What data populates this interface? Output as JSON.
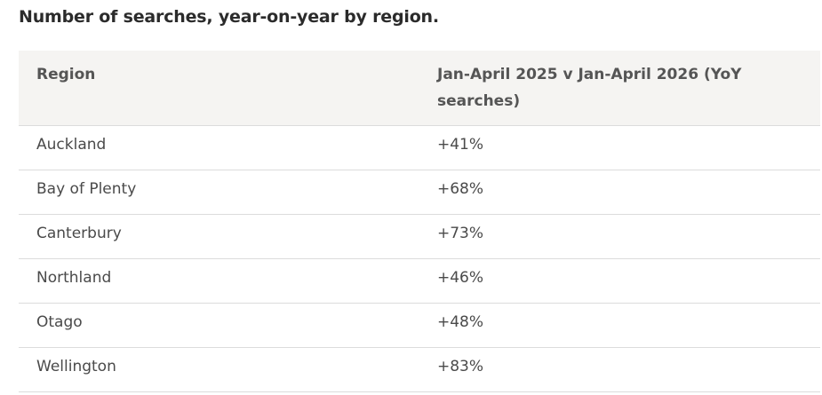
{
  "title": "Number of searches, year-on-year by region.",
  "table": {
    "header": [
      "Region",
      "Jan-April 2025 v Jan-April 2026 (YoY searches)"
    ],
    "rows": [
      [
        "Auckland",
        "+41%"
      ],
      [
        "Bay of Plenty",
        "+68%"
      ],
      [
        "Canterbury",
        "+73%"
      ],
      [
        "Northland",
        "+46%"
      ],
      [
        "Otago",
        "+48%"
      ],
      [
        "Wellington",
        "+83%"
      ]
    ]
  }
}
